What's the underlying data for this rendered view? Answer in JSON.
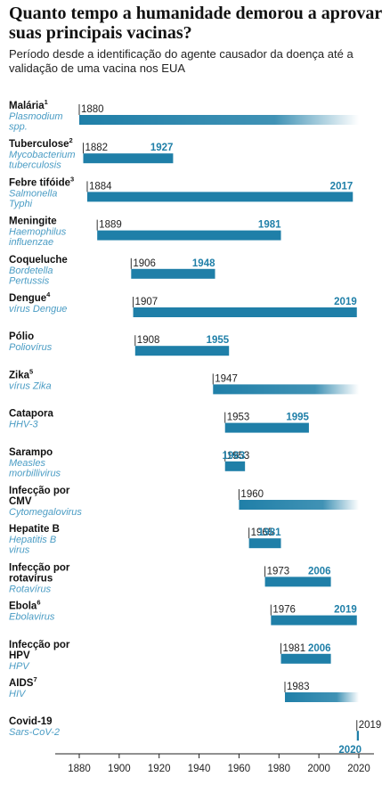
{
  "title": "Quanto tempo a humanidade demorou a aprovar suas principais vacinas?",
  "subtitle": "Período desde a identificação do agente causador da doença até a validação de uma vacina nos EUA",
  "colors": {
    "bar": "#1f7fa8",
    "pathogen": "#4a9cc4",
    "end_label": "#1f7fa8"
  },
  "chart_data": {
    "type": "bar",
    "orientation": "horizontal-range",
    "title": "Quanto tempo a humanidade demorou a aprovar suas principais vacinas?",
    "subtitle": "Período desde a identificação do agente causador da doença até a validação de uma vacina nos EUA",
    "xlim": [
      1880,
      2020
    ],
    "x_ticks": [
      1880,
      1900,
      1920,
      1940,
      1960,
      1980,
      2000,
      2020
    ],
    "grid": false,
    "rows": [
      {
        "disease": "Malária",
        "sup": "1",
        "pathogen": "Plasmodium spp.",
        "start": 1880,
        "end": null
      },
      {
        "disease": "Tuberculose",
        "sup": "2",
        "pathogen": "Mycobacterium tuberculosis",
        "start": 1882,
        "end": 1927
      },
      {
        "disease": "Febre tifóide",
        "sup": "3",
        "pathogen": "Salmonella Typhi",
        "start": 1884,
        "end": 2017
      },
      {
        "disease": "Meningite",
        "sup": "",
        "pathogen": "Haemophilus influenzae",
        "start": 1889,
        "end": 1981
      },
      {
        "disease": "Coqueluche",
        "sup": "",
        "pathogen": "Bordetella Pertussis",
        "start": 1906,
        "end": 1948
      },
      {
        "disease": "Dengue",
        "sup": "4",
        "pathogen": "vírus Dengue",
        "start": 1907,
        "end": 2019
      },
      {
        "disease": "Pólio",
        "sup": "",
        "pathogen": "Poliovírus",
        "start": 1908,
        "end": 1955
      },
      {
        "disease": "Zika",
        "sup": "5",
        "pathogen": "vírus Zika",
        "start": 1947,
        "end": null
      },
      {
        "disease": "Catapora",
        "sup": "",
        "pathogen": "HHV-3",
        "start": 1953,
        "end": 1995
      },
      {
        "disease": "Sarampo",
        "sup": "",
        "pathogen": "Measles morbillivirus",
        "start": 1953,
        "end": 1963
      },
      {
        "disease": "Infecção por CMV",
        "sup": "",
        "pathogen": "Cytomegalovirus",
        "start": 1960,
        "end": null
      },
      {
        "disease": "Hepatite B",
        "sup": "",
        "pathogen": "Hepatitis B virus",
        "start": 1965,
        "end": 1981
      },
      {
        "disease": "Infecção por rotavírus",
        "sup": "",
        "pathogen": "Rotavírus",
        "start": 1973,
        "end": 2006
      },
      {
        "disease": "Ebola",
        "sup": "6",
        "pathogen": "Ebolavirus",
        "start": 1976,
        "end": 2019
      },
      {
        "disease": "Infecção por HPV",
        "sup": "",
        "pathogen": "HPV",
        "start": 1981,
        "end": 2006
      },
      {
        "disease": "AIDS",
        "sup": "7",
        "pathogen": "HIV",
        "start": 1983,
        "end": null
      },
      {
        "disease": "Covid-19",
        "sup": "",
        "pathogen": "Sars-CoV-2",
        "start": 2019,
        "end": 2020
      }
    ]
  }
}
